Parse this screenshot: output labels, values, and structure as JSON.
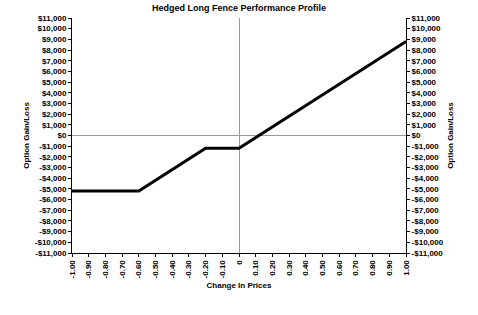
{
  "chart_data": {
    "type": "line",
    "title": "Hedged Long Fence Performance Profile",
    "xlabel": "Change In Prices",
    "ylabel": "Option Gain/Loss",
    "y2label": "Option Gain/Loss",
    "x": [
      -1.0,
      -0.6,
      -0.2,
      0,
      1.0
    ],
    "values": [
      -5200,
      -5200,
      -1200,
      -1200,
      8800
    ],
    "color": "#000000",
    "grid": false,
    "xlim": [
      -1.0,
      1.0
    ],
    "xticks": [
      {
        "value": -1.0,
        "label": "-1.00"
      },
      {
        "value": -0.9,
        "label": "-0.90"
      },
      {
        "value": -0.8,
        "label": "-0.80"
      },
      {
        "value": -0.7,
        "label": "-0.70"
      },
      {
        "value": -0.6,
        "label": "-0.60"
      },
      {
        "value": -0.5,
        "label": "-0.50"
      },
      {
        "value": -0.4,
        "label": "-0.40"
      },
      {
        "value": -0.3,
        "label": "-0.30"
      },
      {
        "value": -0.2,
        "label": "-0.20"
      },
      {
        "value": -0.1,
        "label": "-0.10"
      },
      0,
      {
        "value": 0.1,
        "label": "0.10"
      },
      {
        "value": 0.2,
        "label": "0.20"
      },
      {
        "value": 0.3,
        "label": "0.30"
      },
      {
        "value": 0.4,
        "label": "0.40"
      },
      {
        "value": 0.5,
        "label": "0.50"
      },
      {
        "value": 0.6,
        "label": "0.60"
      },
      {
        "value": 0.7,
        "label": "0.70"
      },
      {
        "value": 0.8,
        "label": "0.80"
      },
      {
        "value": 0.9,
        "label": "0.90"
      },
      {
        "value": 1.0,
        "label": "1.00"
      }
    ],
    "ylim": [
      -11000,
      11000
    ],
    "yticks": [
      {
        "value": 11000,
        "label": "$11,000"
      },
      {
        "value": 10000,
        "label": "$10,000"
      },
      {
        "value": 9000,
        "label": "$9,000"
      },
      {
        "value": 8000,
        "label": "$8,000"
      },
      {
        "value": 7000,
        "label": "$7,000"
      },
      {
        "value": 6000,
        "label": "$6,000"
      },
      {
        "value": 5000,
        "label": "$5,000"
      },
      {
        "value": 4000,
        "label": "$4,000"
      },
      {
        "value": 3000,
        "label": "$3,000"
      },
      {
        "value": 2000,
        "label": "$2,000"
      },
      {
        "value": 1000,
        "label": "$1,000"
      },
      {
        "value": 0,
        "label": "$0"
      },
      {
        "value": -1000,
        "label": "-$1,000"
      },
      {
        "value": -2000,
        "label": "-$2,000"
      },
      {
        "value": -3000,
        "label": "-$3,000"
      },
      {
        "value": -4000,
        "label": "-$4,000"
      },
      {
        "value": -5000,
        "label": "-$5,000"
      },
      {
        "value": -6000,
        "label": "-$6,000"
      },
      {
        "value": -7000,
        "label": "-$7,000"
      },
      {
        "value": -8000,
        "label": "-$8,000"
      },
      {
        "value": -9000,
        "label": "-$9,000"
      },
      {
        "value": -10000,
        "label": "-$10,000"
      },
      {
        "value": -11000,
        "label": "-$11,000"
      }
    ],
    "y2lim": [
      -11000,
      11000
    ],
    "y2ticks": [
      {
        "value": 11000,
        "label": "$11,000"
      },
      {
        "value": 10000,
        "label": "$10,000"
      },
      {
        "value": 9000,
        "label": "$9,000"
      },
      {
        "value": 8000,
        "label": "$8,000"
      },
      {
        "value": 7000,
        "label": "$7,000"
      },
      {
        "value": 6000,
        "label": "$6,000"
      },
      {
        "value": 5000,
        "label": "$5,000"
      },
      {
        "value": 4000,
        "label": "$4,000"
      },
      {
        "value": 3000,
        "label": "$3,000"
      },
      {
        "value": 2000,
        "label": "$2,000"
      },
      {
        "value": 1000,
        "label": "$1,000"
      },
      {
        "value": 0,
        "label": "$0"
      },
      {
        "value": -1000,
        "label": "-$1,000"
      },
      {
        "value": -2000,
        "label": "-$2,000"
      },
      {
        "value": -3000,
        "label": "-$3,000"
      },
      {
        "value": -4000,
        "label": "-$4,000"
      },
      {
        "value": -5000,
        "label": "-$5,000"
      },
      {
        "value": -6000,
        "label": "-$6,000"
      },
      {
        "value": -7000,
        "label": "-$7,000"
      },
      {
        "value": -8000,
        "label": "-$8,000"
      },
      {
        "value": -9000,
        "label": "-$9,000"
      },
      {
        "value": -10000,
        "label": "-$10,000"
      },
      {
        "value": -11000,
        "label": "-$11,000"
      }
    ]
  }
}
